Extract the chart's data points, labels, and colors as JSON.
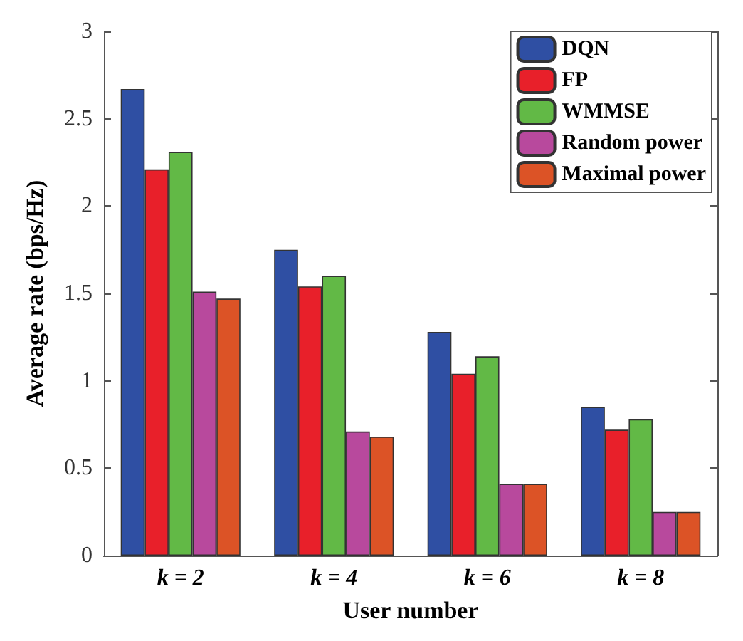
{
  "chart_data": {
    "type": "bar",
    "xlabel": "User number",
    "ylabel": "Average rate (bps/Hz)",
    "categories": [
      "k = 2",
      "k = 4",
      "k = 6",
      "k = 8"
    ],
    "series": [
      {
        "name": "DQN",
        "color": "#2f4fa3",
        "values": [
          2.67,
          1.75,
          1.28,
          0.85
        ]
      },
      {
        "name": "FP",
        "color": "#e8202a",
        "values": [
          2.21,
          1.54,
          1.04,
          0.72
        ]
      },
      {
        "name": "WMMSE",
        "color": "#62b946",
        "values": [
          2.31,
          1.6,
          1.14,
          0.78
        ]
      },
      {
        "name": "Random power",
        "color": "#b8499d",
        "values": [
          1.51,
          0.71,
          0.41,
          0.25
        ]
      },
      {
        "name": "Maximal power",
        "color": "#dc5326",
        "values": [
          1.47,
          0.68,
          0.41,
          0.25
        ]
      }
    ],
    "ylim": [
      0,
      3
    ],
    "yticks": [
      0,
      0.5,
      1,
      1.5,
      2,
      2.5,
      3
    ],
    "grid": false,
    "legend": "top right"
  }
}
